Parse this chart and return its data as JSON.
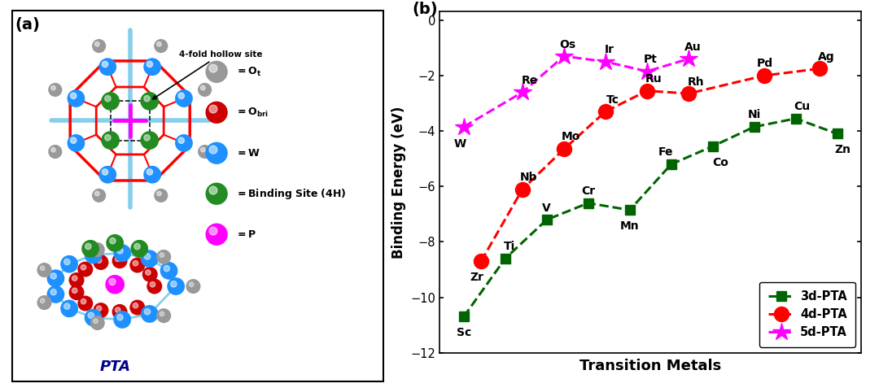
{
  "series_3d": {
    "labels": [
      "Sc",
      "Ti",
      "V",
      "Cr",
      "Mn",
      "Fe",
      "Co",
      "Ni",
      "Cu",
      "Zn"
    ],
    "x": [
      1.0,
      2.2,
      3.4,
      4.6,
      5.8,
      7.0,
      8.2,
      9.4,
      10.6,
      11.8
    ],
    "y": [
      -10.7,
      -8.6,
      -7.2,
      -6.6,
      -6.85,
      -5.2,
      -4.55,
      -3.85,
      -3.55,
      -4.1
    ],
    "color": "#006400",
    "marker": "s",
    "markersize": 9,
    "linewidth": 2.2,
    "linestyle": "--",
    "label": "3d-PTA"
  },
  "series_4d": {
    "labels": [
      "Zr",
      "Nb",
      "Mo",
      "Tc",
      "Ru",
      "Rh",
      "Pd",
      "Ag"
    ],
    "x": [
      1.5,
      2.7,
      3.9,
      5.1,
      6.3,
      7.5,
      9.7,
      11.3
    ],
    "y": [
      -8.7,
      -6.1,
      -4.65,
      -3.3,
      -2.55,
      -2.65,
      -2.0,
      -1.75
    ],
    "color": "#ff0000",
    "marker": "o",
    "markersize": 13,
    "linewidth": 2.2,
    "linestyle": "--",
    "label": "4d-PTA"
  },
  "series_5d": {
    "labels": [
      "W",
      "Re",
      "Os",
      "Ir",
      "Pt",
      "Au"
    ],
    "x": [
      1.0,
      2.7,
      3.9,
      5.1,
      6.3,
      7.5
    ],
    "y": [
      -3.85,
      -2.6,
      -1.3,
      -1.5,
      -1.85,
      -1.4
    ],
    "color": "#ff00ff",
    "marker": "*",
    "markersize": 16,
    "linewidth": 2.2,
    "linestyle": "--",
    "label": "5d-PTA"
  },
  "ylabel": "Binding Energy (eV)",
  "xlabel": "Transition Metals",
  "ylim": [
    -12,
    0.3
  ],
  "yticks": [
    0,
    -2,
    -4,
    -6,
    -8,
    -10,
    -12
  ],
  "xlim": [
    0.3,
    12.5
  ],
  "panel_b_label": "(b)",
  "panel_a_label": "(a)"
}
